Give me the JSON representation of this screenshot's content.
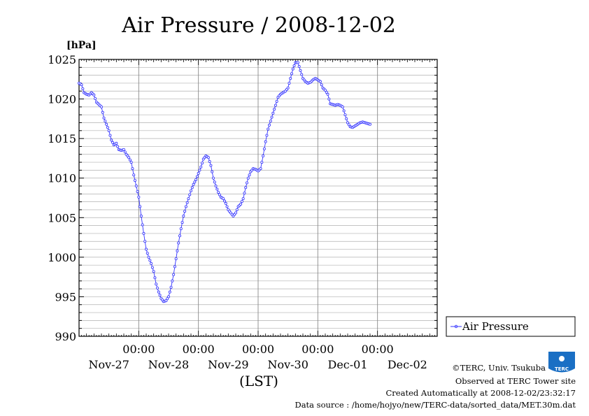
{
  "chart_data": {
    "type": "line",
    "title": "Air Pressure / 2008-12-02",
    "ylabel": "[hPa]",
    "xlabel": "(LST)",
    "ylim": [
      990,
      1025
    ],
    "yticks": [
      990,
      995,
      1000,
      1005,
      1010,
      1015,
      1020,
      1025
    ],
    "xlim_hours": [
      0,
      144
    ],
    "x_major_labels": [
      {
        "hour": 24,
        "time": "00:00"
      },
      {
        "hour": 48,
        "time": "00:00"
      },
      {
        "hour": 72,
        "time": "00:00"
      },
      {
        "hour": 96,
        "time": "00:00"
      },
      {
        "hour": 120,
        "time": "00:00"
      }
    ],
    "x_day_labels": [
      {
        "hour": 12,
        "label": "Nov-27"
      },
      {
        "hour": 36,
        "label": "Nov-28"
      },
      {
        "hour": 60,
        "label": "Nov-29"
      },
      {
        "hour": 84,
        "label": "Nov-30"
      },
      {
        "hour": 108,
        "label": "Dec-01"
      },
      {
        "hour": 132,
        "label": "Dec-02"
      }
    ],
    "grid": true,
    "legend_position": "right",
    "line_color": "#3333ff",
    "series": [
      {
        "name": "Air Pressure",
        "points": [
          [
            0,
            1022.0
          ],
          [
            1,
            1021.8
          ],
          [
            2,
            1020.8
          ],
          [
            3,
            1020.6
          ],
          [
            4,
            1020.5
          ],
          [
            5,
            1020.8
          ],
          [
            6,
            1020.5
          ],
          [
            7,
            1019.6
          ],
          [
            8,
            1019.3
          ],
          [
            9,
            1019.0
          ],
          [
            10,
            1017.6
          ],
          [
            11,
            1016.8
          ],
          [
            12,
            1016.0
          ],
          [
            13,
            1014.8
          ],
          [
            14,
            1014.2
          ],
          [
            15,
            1014.4
          ],
          [
            16,
            1013.6
          ],
          [
            17,
            1013.5
          ],
          [
            18,
            1013.6
          ],
          [
            19,
            1013.0
          ],
          [
            20,
            1012.6
          ],
          [
            21,
            1012.0
          ],
          [
            22,
            1010.4
          ],
          [
            23,
            1009.0
          ],
          [
            24,
            1007.6
          ],
          [
            25,
            1005.2
          ],
          [
            26,
            1003.0
          ],
          [
            27,
            1001.0
          ],
          [
            28,
            1000.0
          ],
          [
            29,
            999.2
          ],
          [
            30,
            998.2
          ],
          [
            31,
            996.6
          ],
          [
            32,
            995.6
          ],
          [
            33,
            994.8
          ],
          [
            34,
            994.4
          ],
          [
            35,
            994.5
          ],
          [
            36,
            995.0
          ],
          [
            37,
            996.2
          ],
          [
            38,
            997.8
          ],
          [
            39,
            999.8
          ],
          [
            40,
            1001.8
          ],
          [
            41,
            1003.6
          ],
          [
            42,
            1005.2
          ],
          [
            43,
            1006.4
          ],
          [
            44,
            1007.4
          ],
          [
            45,
            1008.4
          ],
          [
            46,
            1009.2
          ],
          [
            47,
            1009.8
          ],
          [
            48,
            1010.6
          ],
          [
            49,
            1011.4
          ],
          [
            50,
            1012.4
          ],
          [
            51,
            1012.8
          ],
          [
            52,
            1012.6
          ],
          [
            53,
            1011.6
          ],
          [
            54,
            1010.0
          ],
          [
            55,
            1009.0
          ],
          [
            56,
            1008.2
          ],
          [
            57,
            1007.6
          ],
          [
            58,
            1007.4
          ],
          [
            59,
            1006.8
          ],
          [
            60,
            1006.0
          ],
          [
            61,
            1005.6
          ],
          [
            62,
            1005.2
          ],
          [
            63,
            1005.6
          ],
          [
            64,
            1006.4
          ],
          [
            65,
            1006.7
          ],
          [
            66,
            1007.4
          ],
          [
            67,
            1008.8
          ],
          [
            68,
            1010.0
          ],
          [
            69,
            1010.8
          ],
          [
            70,
            1011.2
          ],
          [
            71,
            1011.1
          ],
          [
            72,
            1010.9
          ],
          [
            73,
            1011.2
          ],
          [
            74,
            1012.8
          ],
          [
            75,
            1014.6
          ],
          [
            76,
            1016.2
          ],
          [
            77,
            1017.2
          ],
          [
            78,
            1018.2
          ],
          [
            79,
            1019.2
          ],
          [
            80,
            1020.2
          ],
          [
            81,
            1020.6
          ],
          [
            82,
            1020.8
          ],
          [
            83,
            1021.0
          ],
          [
            84,
            1021.4
          ],
          [
            85,
            1022.6
          ],
          [
            86,
            1023.8
          ],
          [
            87,
            1024.6
          ],
          [
            88,
            1024.6
          ],
          [
            89,
            1023.6
          ],
          [
            90,
            1022.6
          ],
          [
            91,
            1022.2
          ],
          [
            92,
            1022.0
          ],
          [
            93,
            1022.1
          ],
          [
            94,
            1022.4
          ],
          [
            95,
            1022.6
          ],
          [
            96,
            1022.4
          ],
          [
            97,
            1022.2
          ],
          [
            98,
            1021.4
          ],
          [
            99,
            1021.1
          ],
          [
            100,
            1020.6
          ],
          [
            101,
            1019.4
          ],
          [
            102,
            1019.3
          ],
          [
            103,
            1019.2
          ],
          [
            104,
            1019.3
          ],
          [
            105,
            1019.2
          ],
          [
            106,
            1019.0
          ],
          [
            107,
            1018.0
          ],
          [
            108,
            1017.0
          ],
          [
            109,
            1016.5
          ],
          [
            110,
            1016.4
          ],
          [
            111,
            1016.6
          ],
          [
            112,
            1016.8
          ],
          [
            113,
            1017.0
          ],
          [
            114,
            1017.1
          ],
          [
            115,
            1017.0
          ],
          [
            116,
            1016.9
          ],
          [
            117,
            1016.8
          ]
        ]
      }
    ]
  },
  "credits": {
    "copyright": "©TERC, Univ. Tsukuba",
    "observed": "Observed at TERC Tower site",
    "created": "Created Automatically at 2008-12-02/23:32:17",
    "source": "Data source : /home/hojyo/new/TERC-data/sorted_data/MET.30m.dat",
    "logo_text": "TERC"
  }
}
